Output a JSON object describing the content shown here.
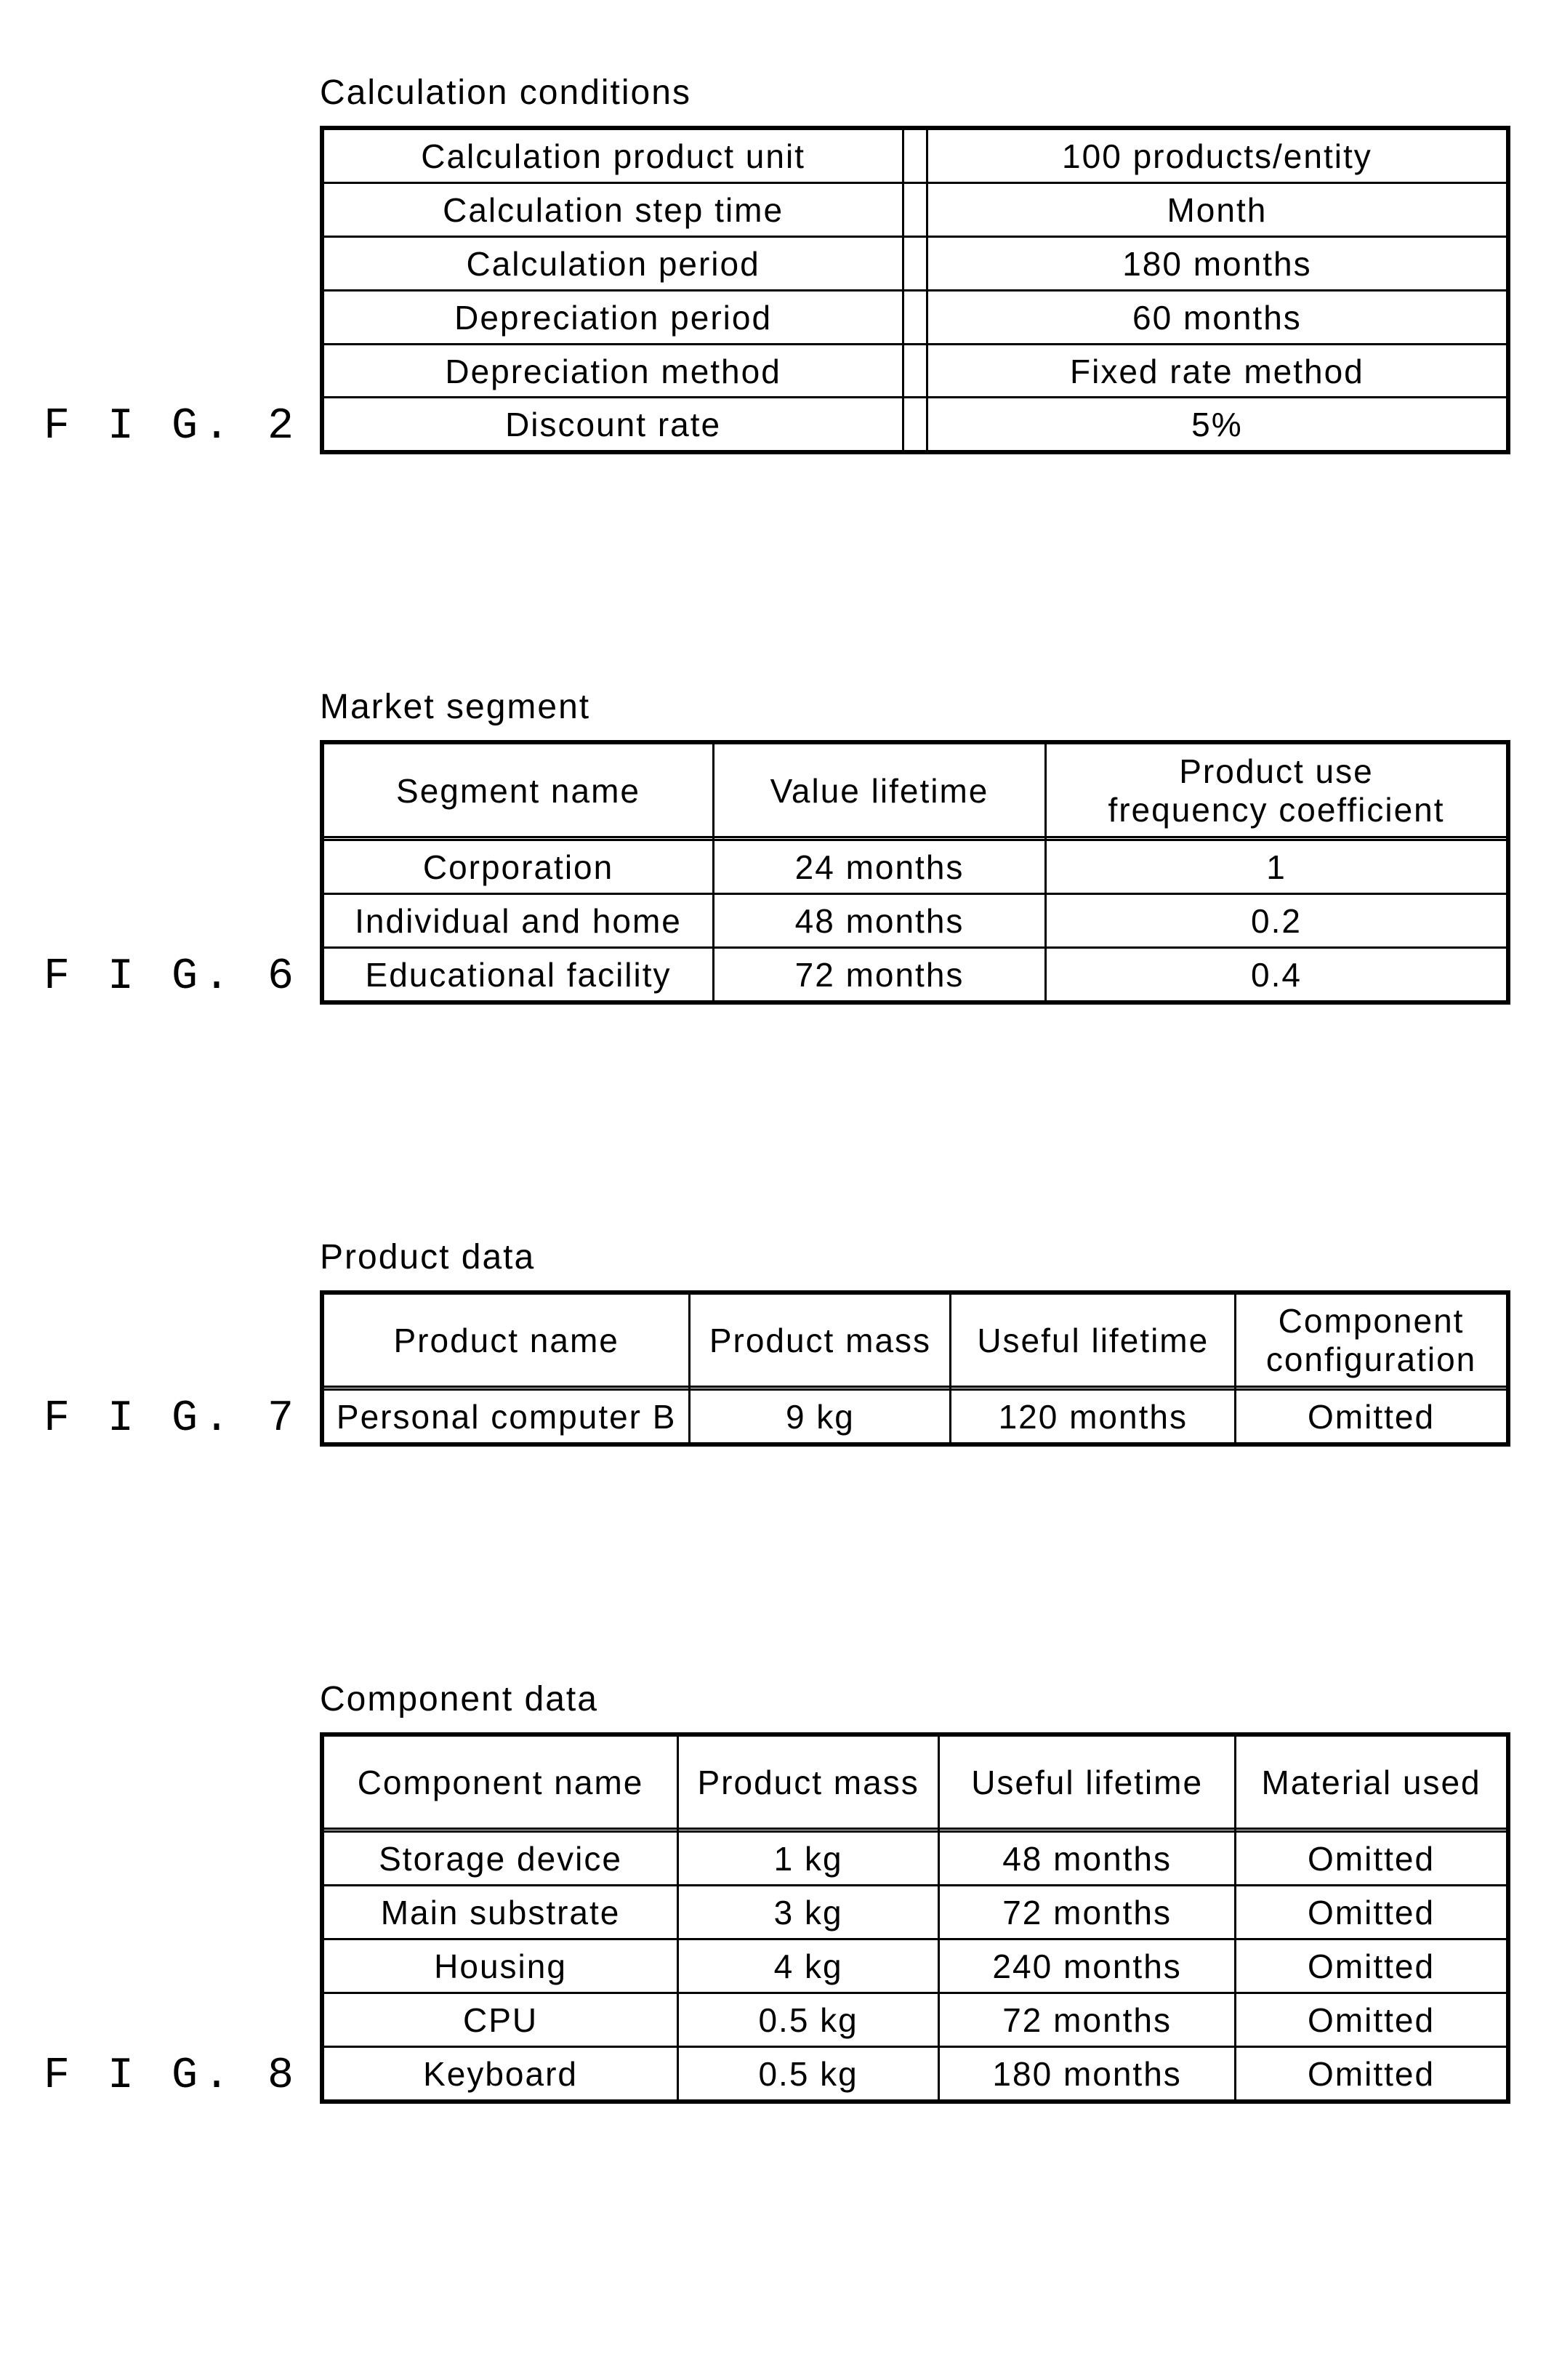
{
  "fig2": {
    "label": "F I G. 2",
    "title": "Calculation conditions",
    "rows": [
      {
        "k": "Calculation product unit",
        "v": "100 products/entity"
      },
      {
        "k": "Calculation step time",
        "v": "Month"
      },
      {
        "k": "Calculation period",
        "v": "180 months"
      },
      {
        "k": "Depreciation period",
        "v": "60 months"
      },
      {
        "k": "Depreciation method",
        "v": "Fixed rate method"
      },
      {
        "k": "Discount rate",
        "v": "5%"
      }
    ],
    "col_widths": [
      "50%",
      "50%"
    ]
  },
  "fig6": {
    "label": "F I G. 6",
    "title": "Market segment",
    "columns": [
      "Segment name",
      "Value lifetime",
      "Product use\nfrequency coefficient"
    ],
    "rows": [
      [
        "Corporation",
        "24 months",
        "1"
      ],
      [
        "Individual and home",
        "48 months",
        "0.2"
      ],
      [
        "Educational facility",
        "72 months",
        "0.4"
      ]
    ],
    "col_widths": [
      "33%",
      "28%",
      "39%"
    ]
  },
  "fig7": {
    "label": "F I G. 7",
    "title": "Product data",
    "columns": [
      "Product name",
      "Product mass",
      "Useful lifetime",
      "Component\nconfiguration"
    ],
    "rows": [
      [
        "Personal computer B",
        "9 kg",
        "120 months",
        "Omitted"
      ]
    ],
    "col_widths": [
      "31%",
      "22%",
      "24%",
      "23%"
    ]
  },
  "fig8": {
    "label": "F I G. 8",
    "title": "Component data",
    "columns": [
      "Component name",
      "Product mass",
      "Useful lifetime",
      "Material used"
    ],
    "rows": [
      [
        "Storage device",
        "1 kg",
        "48 months",
        "Omitted"
      ],
      [
        "Main substrate",
        "3 kg",
        "72 months",
        "Omitted"
      ],
      [
        "Housing",
        "4 kg",
        "240 months",
        "Omitted"
      ],
      [
        "CPU",
        "0.5 kg",
        "72 months",
        "Omitted"
      ],
      [
        "Keyboard",
        "0.5 kg",
        "180 months",
        "Omitted"
      ]
    ],
    "col_widths": [
      "30%",
      "22%",
      "25%",
      "23%"
    ]
  }
}
